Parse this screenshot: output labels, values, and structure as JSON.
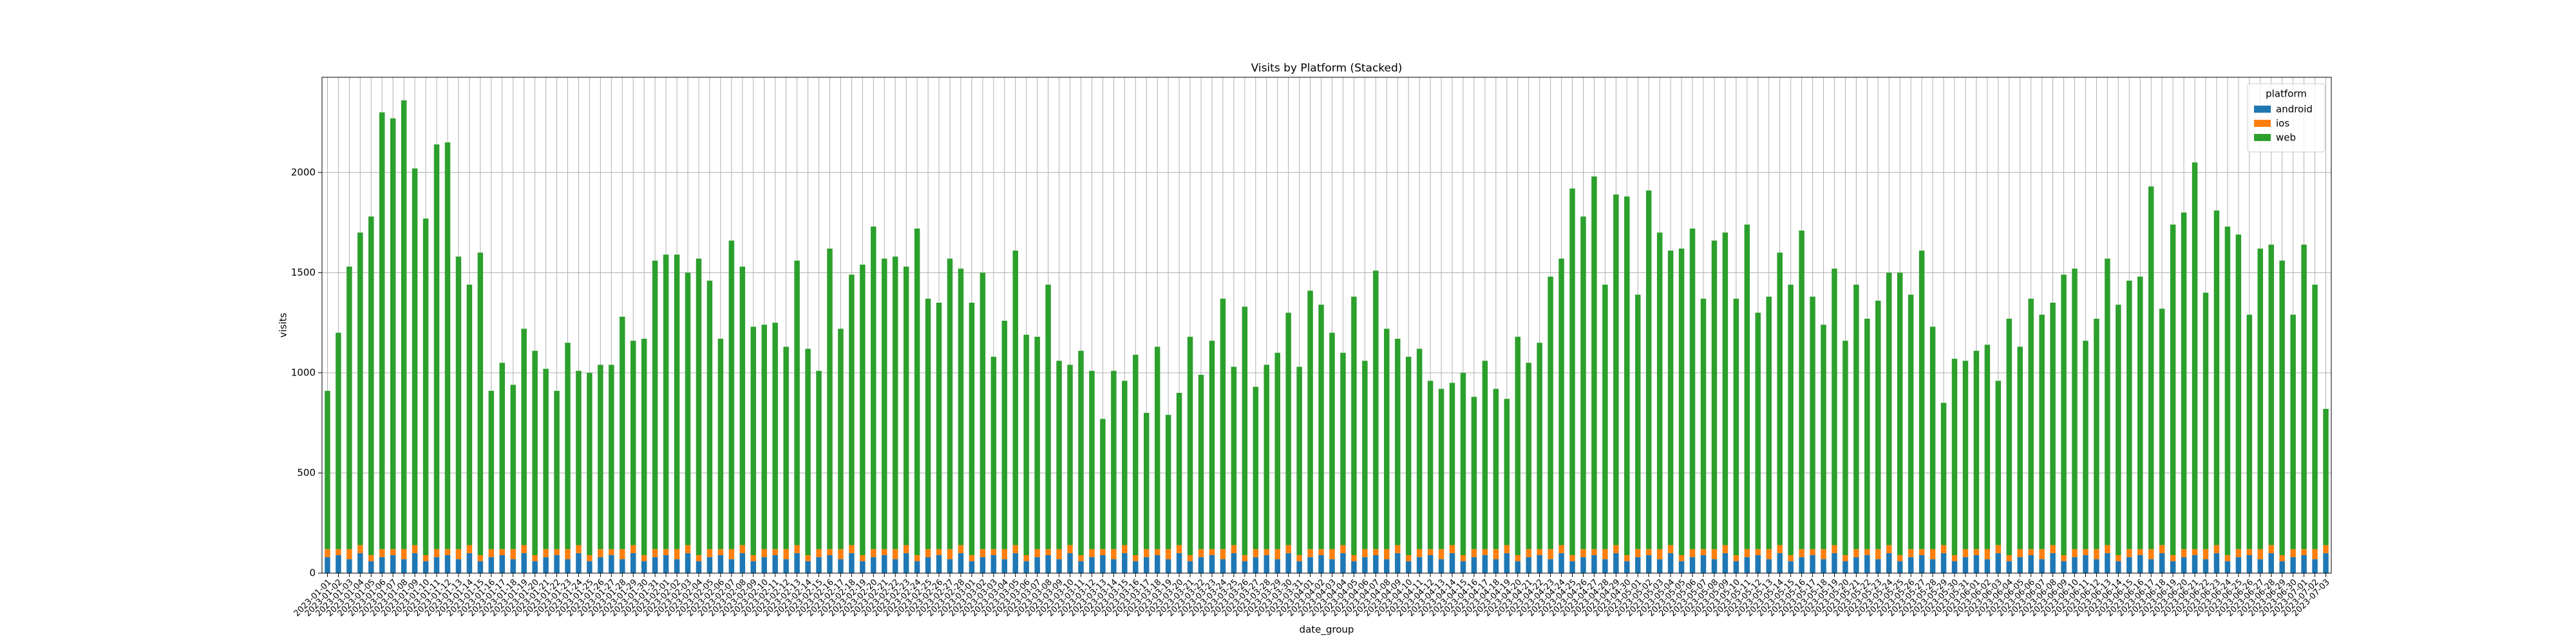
{
  "chart_data": {
    "type": "stacked_bar",
    "title": "Visits by Platform (Stacked)",
    "x_label": "date_group",
    "y_label": "visits",
    "legend_title": "platform",
    "legend_position": "upper right",
    "grid": true,
    "ylim": [
      0,
      2475
    ],
    "yticks": [
      0,
      500,
      1000,
      1500,
      2000
    ],
    "categories": [
      "2023-01-01",
      "2023-01-02",
      "2023-01-03",
      "2023-01-04",
      "2023-01-05",
      "2023-01-06",
      "2023-01-07",
      "2023-01-08",
      "2023-01-09",
      "2023-01-10",
      "2023-01-11",
      "2023-01-12",
      "2023-01-13",
      "2023-01-14",
      "2023-01-15",
      "2023-01-16",
      "2023-01-17",
      "2023-01-18",
      "2023-01-19",
      "2023-01-20",
      "2023-01-21",
      "2023-01-22",
      "2023-01-23",
      "2023-01-24",
      "2023-01-25",
      "2023-01-26",
      "2023-01-27",
      "2023-01-28",
      "2023-01-29",
      "2023-01-30",
      "2023-01-31",
      "2023-02-01",
      "2023-02-02",
      "2023-02-03",
      "2023-02-04",
      "2023-02-05",
      "2023-02-06",
      "2023-02-07",
      "2023-02-08",
      "2023-02-09",
      "2023-02-10",
      "2023-02-11",
      "2023-02-12",
      "2023-02-13",
      "2023-02-14",
      "2023-02-15",
      "2023-02-16",
      "2023-02-17",
      "2023-02-18",
      "2023-02-19",
      "2023-02-20",
      "2023-02-21",
      "2023-02-22",
      "2023-02-23",
      "2023-02-24",
      "2023-02-25",
      "2023-02-26",
      "2023-02-27",
      "2023-02-28",
      "2023-03-01",
      "2023-03-02",
      "2023-03-03",
      "2023-03-04",
      "2023-03-05",
      "2023-03-06",
      "2023-03-07",
      "2023-03-08",
      "2023-03-09",
      "2023-03-10",
      "2023-03-11",
      "2023-03-12",
      "2023-03-13",
      "2023-03-14",
      "2023-03-15",
      "2023-03-16",
      "2023-03-17",
      "2023-03-18",
      "2023-03-19",
      "2023-03-20",
      "2023-03-21",
      "2023-03-22",
      "2023-03-23",
      "2023-03-24",
      "2023-03-25",
      "2023-03-26",
      "2023-03-27",
      "2023-03-28",
      "2023-03-29",
      "2023-03-30",
      "2023-03-31",
      "2023-04-01",
      "2023-04-02",
      "2023-04-03",
      "2023-04-04",
      "2023-04-05",
      "2023-04-06",
      "2023-04-07",
      "2023-04-08",
      "2023-04-09",
      "2023-04-10",
      "2023-04-11",
      "2023-04-12",
      "2023-04-13",
      "2023-04-14",
      "2023-04-15",
      "2023-04-16",
      "2023-04-17",
      "2023-04-18",
      "2023-04-19",
      "2023-04-20",
      "2023-04-21",
      "2023-04-22",
      "2023-04-23",
      "2023-04-24",
      "2023-04-25",
      "2023-04-26",
      "2023-04-27",
      "2023-04-28",
      "2023-04-29",
      "2023-04-30",
      "2023-05-01",
      "2023-05-02",
      "2023-05-03",
      "2023-05-04",
      "2023-05-05",
      "2023-05-06",
      "2023-05-07",
      "2023-05-08",
      "2023-05-09",
      "2023-05-10",
      "2023-05-11",
      "2023-05-12",
      "2023-05-13",
      "2023-05-14",
      "2023-05-15",
      "2023-05-16",
      "2023-05-17",
      "2023-05-18",
      "2023-05-19",
      "2023-05-20",
      "2023-05-21",
      "2023-05-22",
      "2023-05-23",
      "2023-05-24",
      "2023-05-25",
      "2023-05-26",
      "2023-05-27",
      "2023-05-28",
      "2023-05-29",
      "2023-05-30",
      "2023-05-31",
      "2023-06-01",
      "2023-06-02",
      "2023-06-03",
      "2023-06-04",
      "2023-06-05",
      "2023-06-06",
      "2023-06-07",
      "2023-06-08",
      "2023-06-09",
      "2023-06-10",
      "2023-06-11",
      "2023-06-12",
      "2023-06-13",
      "2023-06-14",
      "2023-06-15",
      "2023-06-16",
      "2023-06-17",
      "2023-06-18",
      "2023-06-19",
      "2023-06-20",
      "2023-06-21",
      "2023-06-22",
      "2023-06-23",
      "2023-06-24",
      "2023-06-25",
      "2023-06-26",
      "2023-06-27",
      "2023-06-28",
      "2023-06-29",
      "2023-06-30",
      "2023-07-01",
      "2023-07-02",
      "2023-07-03"
    ],
    "series": [
      {
        "name": "android",
        "color": "#1f77b4",
        "values": [
          80,
          90,
          70,
          100,
          60,
          80,
          90,
          70,
          100,
          60,
          80,
          90,
          70,
          100,
          60,
          80,
          90,
          70,
          100,
          60,
          80,
          90,
          70,
          100,
          60,
          80,
          90,
          70,
          100,
          60,
          80,
          90,
          70,
          100,
          60,
          80,
          90,
          70,
          100,
          60,
          80,
          90,
          70,
          100,
          60,
          80,
          90,
          70,
          100,
          60,
          80,
          90,
          70,
          100,
          60,
          80,
          90,
          70,
          100,
          60,
          80,
          90,
          70,
          100,
          60,
          80,
          90,
          70,
          100,
          60,
          80,
          90,
          70,
          100,
          60,
          80,
          90,
          70,
          100,
          60,
          80,
          90,
          70,
          100,
          60,
          80,
          90,
          70,
          100,
          60,
          80,
          90,
          70,
          100,
          60,
          80,
          90,
          70,
          100,
          60,
          80,
          90,
          70,
          100,
          60,
          80,
          90,
          70,
          100,
          60,
          80,
          90,
          70,
          100,
          60,
          80,
          90,
          70,
          100,
          60,
          80,
          90,
          70,
          100,
          60,
          80,
          90,
          70,
          100,
          60,
          80,
          90,
          70,
          100,
          60,
          80,
          90,
          70,
          100,
          60,
          80,
          90,
          70,
          100,
          60,
          80,
          90,
          70,
          100,
          60,
          80,
          90,
          70,
          100,
          60,
          80,
          90,
          70,
          100,
          60,
          80,
          90,
          70,
          100,
          60,
          80,
          90,
          70,
          100,
          60,
          80,
          90,
          70,
          100,
          60,
          80,
          90,
          70,
          100,
          60,
          80,
          90,
          70,
          100
        ]
      },
      {
        "name": "ios",
        "color": "#ff7f0e",
        "values": [
          40,
          30,
          50,
          40,
          30,
          40,
          30,
          50,
          40,
          30,
          40,
          30,
          50,
          40,
          30,
          40,
          30,
          50,
          40,
          30,
          40,
          30,
          50,
          40,
          30,
          40,
          30,
          50,
          40,
          30,
          40,
          30,
          50,
          40,
          30,
          40,
          30,
          50,
          40,
          30,
          40,
          30,
          50,
          40,
          30,
          40,
          30,
          50,
          40,
          30,
          40,
          30,
          50,
          40,
          30,
          40,
          30,
          50,
          40,
          30,
          40,
          30,
          50,
          40,
          30,
          40,
          30,
          50,
          40,
          30,
          40,
          30,
          50,
          40,
          30,
          40,
          30,
          50,
          40,
          30,
          40,
          30,
          50,
          40,
          30,
          40,
          30,
          50,
          40,
          30,
          40,
          30,
          50,
          40,
          30,
          40,
          30,
          50,
          40,
          30,
          40,
          30,
          50,
          40,
          30,
          40,
          30,
          50,
          40,
          30,
          40,
          30,
          50,
          40,
          30,
          40,
          30,
          50,
          40,
          30,
          40,
          30,
          50,
          40,
          30,
          40,
          30,
          50,
          40,
          30,
          40,
          30,
          50,
          40,
          30,
          40,
          30,
          50,
          40,
          30,
          40,
          30,
          50,
          40,
          30,
          40,
          30,
          50,
          40,
          30,
          40,
          30,
          50,
          40,
          30,
          40,
          30,
          50,
          40,
          30,
          40,
          30,
          50,
          40,
          30,
          40,
          30,
          50,
          40,
          30,
          40,
          30,
          50,
          40,
          30,
          40,
          30,
          50,
          40,
          30,
          40,
          30,
          50,
          40
        ]
      },
      {
        "name": "web",
        "color": "#2ca02c",
        "values": [
          790,
          1080,
          1410,
          1560,
          1690,
          2180,
          2150,
          2240,
          1880,
          1680,
          2020,
          2030,
          1460,
          1300,
          1510,
          790,
          930,
          820,
          1080,
          1020,
          900,
          790,
          1030,
          870,
          910,
          920,
          920,
          1160,
          1020,
          1080,
          1440,
          1470,
          1470,
          1360,
          1480,
          1340,
          1050,
          1540,
          1390,
          1140,
          1120,
          1130,
          1010,
          1420,
          1030,
          890,
          1500,
          1100,
          1350,
          1450,
          1610,
          1450,
          1460,
          1390,
          1630,
          1250,
          1230,
          1450,
          1380,
          1260,
          1380,
          960,
          1140,
          1470,
          1100,
          1060,
          1320,
          940,
          900,
          1020,
          890,
          650,
          890,
          820,
          1000,
          680,
          1010,
          670,
          760,
          1090,
          870,
          1040,
          1250,
          890,
          1240,
          810,
          920,
          980,
          1160,
          940,
          1290,
          1220,
          1080,
          960,
          1290,
          940,
          1390,
          1100,
          1030,
          990,
          1000,
          840,
          800,
          810,
          910,
          760,
          940,
          800,
          730,
          1090,
          930,
          1030,
          1360,
          1430,
          1830,
          1660,
          1860,
          1320,
          1750,
          1790,
          1270,
          1790,
          1580,
          1470,
          1530,
          1600,
          1250,
          1540,
          1560,
          1280,
          1620,
          1180,
          1260,
          1460,
          1350,
          1590,
          1260,
          1120,
          1380,
          1070,
          1320,
          1150,
          1240,
          1360,
          1410,
          1270,
          1490,
          1110,
          710,
          980,
          940,
          990,
          1020,
          820,
          1180,
          1010,
          1250,
          1170,
          1210,
          1400,
          1400,
          1040,
          1150,
          1430,
          1250,
          1340,
          1360,
          1810,
          1180,
          1650,
          1680,
          1930,
          1280,
          1670,
          1640,
          1570,
          1170,
          1500,
          1500,
          1470,
          1170,
          1520,
          1320,
          680
        ]
      }
    ]
  }
}
